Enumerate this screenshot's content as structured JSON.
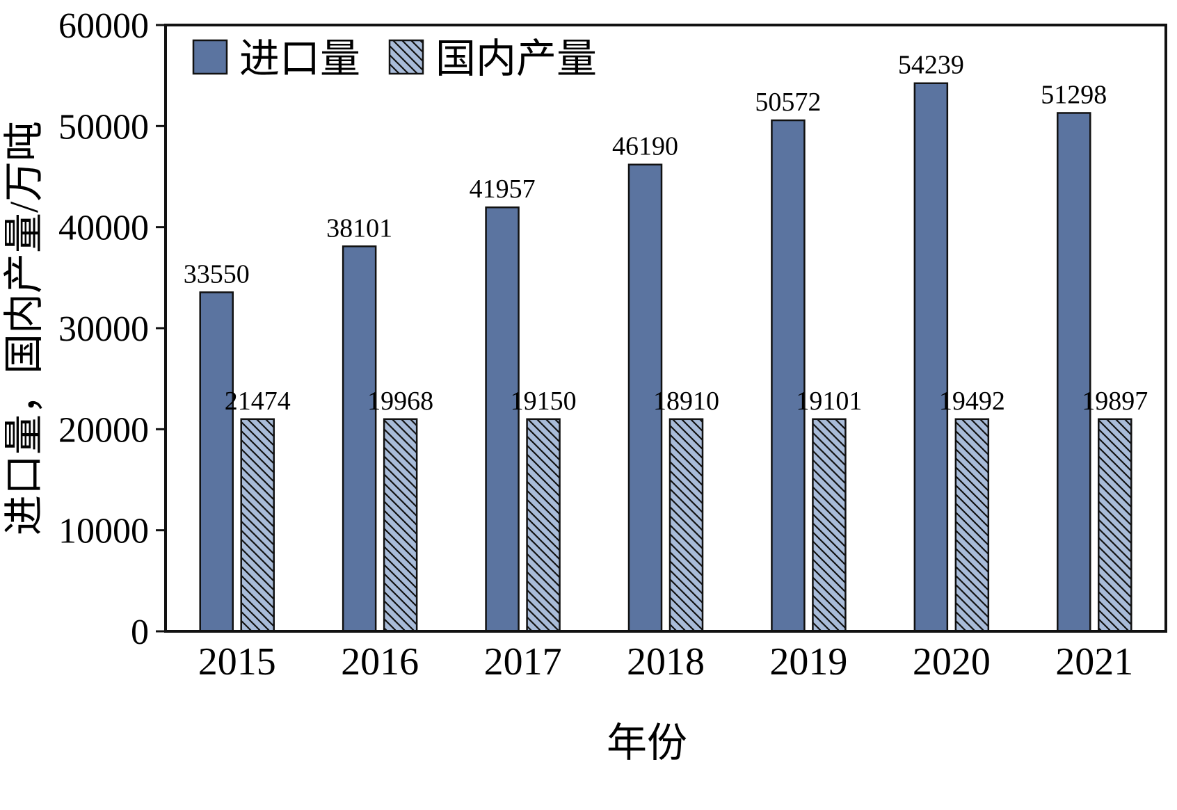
{
  "chart_data": {
    "type": "bar",
    "categories": [
      "2015",
      "2016",
      "2017",
      "2018",
      "2019",
      "2020",
      "2021"
    ],
    "series": [
      {
        "name": "进口量",
        "values": [
          33550,
          38101,
          41957,
          46190,
          50572,
          54239,
          51298
        ],
        "style": "solid",
        "color": "#5b74a0"
      },
      {
        "name": "国内产量",
        "values": [
          21474,
          19968,
          19150,
          18910,
          19101,
          19492,
          19897
        ],
        "style": "hatched-backslash",
        "color": "#a9bcd9",
        "drawn_value": 21000
      }
    ],
    "title": "",
    "xlabel": "年份",
    "ylabel": "进口量，国内产量/万吨",
    "ylim": [
      0,
      60000
    ],
    "ytick_step": 10000,
    "yticks": [
      0,
      10000,
      20000,
      30000,
      40000,
      50000,
      60000
    ],
    "grid": false,
    "value_labels": true,
    "legend_position": "top-left-inside"
  },
  "colors": {
    "import_bar": "#5b74a0",
    "domestic_bar": "#a9bcd9",
    "axis": "#111111",
    "background": "#ffffff",
    "text": "#000000"
  }
}
